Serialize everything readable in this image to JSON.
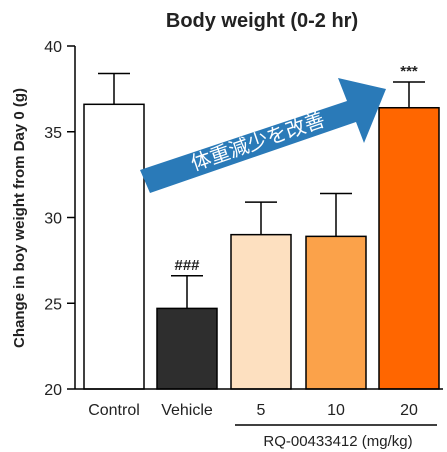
{
  "chart_data": {
    "type": "bar",
    "title": "Body weight (0-2 hr)",
    "ylabel": "Change in boy weight from Day 0 (g)",
    "xlabel": "",
    "ylim": [
      20,
      40
    ],
    "yticks": [
      20,
      25,
      30,
      35,
      40
    ],
    "categories": [
      "Control",
      "Vehicle",
      "5",
      "10",
      "20"
    ],
    "values": [
      36.6,
      24.7,
      29.0,
      28.9,
      36.4
    ],
    "errors": [
      1.8,
      1.9,
      1.9,
      2.5,
      1.5
    ],
    "colors": [
      "#ffffff",
      "#2e2e2e",
      "#fde0c0",
      "#fba24a",
      "#ff6600"
    ],
    "annotations": [
      "",
      "###",
      "",
      "",
      "***"
    ],
    "group_label": "RQ-00433412 (mg/kg)",
    "arrow_label": "体重減少を改善",
    "arrow_color": "#2a7ab8",
    "grid": false,
    "legend": "none"
  }
}
